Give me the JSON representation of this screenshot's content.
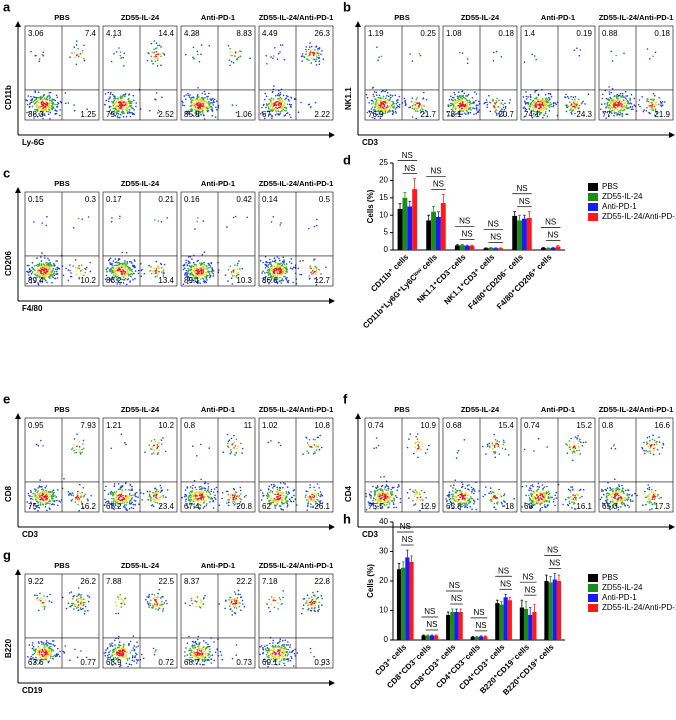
{
  "panels": [
    {
      "label": "a",
      "x_label": "Ly-6G",
      "y_label": "CD11b",
      "plots": [
        {
          "title": "PBS",
          "quadrants": [
            3.06,
            7.4,
            88.3,
            1.25
          ]
        },
        {
          "title": "ZD55-IL-24",
          "quadrants": [
            4.13,
            14.4,
            79,
            2.52
          ]
        },
        {
          "title": "Anti-PD-1",
          "quadrants": [
            4.28,
            8.83,
            85.8,
            1.06
          ]
        },
        {
          "title": "ZD55-IL-24/Anti-PD-1",
          "quadrants": [
            4.49,
            26.3,
            67,
            2.22
          ]
        }
      ]
    },
    {
      "label": "b",
      "x_label": "CD3",
      "y_label": "NK1.1",
      "plots": [
        {
          "title": "PBS",
          "quadrants": [
            1.19,
            0.25,
            76.9,
            21.7
          ]
        },
        {
          "title": "ZD55-IL-24",
          "quadrants": [
            1.08,
            0.18,
            78.1,
            20.7
          ]
        },
        {
          "title": "Anti-PD-1",
          "quadrants": [
            1.4,
            0.19,
            74.1,
            24.3
          ]
        },
        {
          "title": "ZD55-IL-24/Anti-PD-1",
          "quadrants": [
            0.88,
            0.18,
            77,
            21.9
          ]
        }
      ]
    },
    {
      "label": "c",
      "x_label": "F4/80",
      "y_label": "CD206",
      "plots": [
        {
          "title": "PBS",
          "quadrants": [
            0.15,
            0.3,
            89.4,
            10.2
          ]
        },
        {
          "title": "ZD55-IL-24",
          "quadrants": [
            0.17,
            0.21,
            86.2,
            13.4
          ]
        },
        {
          "title": "Anti-PD-1",
          "quadrants": [
            0.16,
            0.42,
            89.1,
            10.3
          ]
        },
        {
          "title": "ZD55-IL-24/Anti-PD-1",
          "quadrants": [
            0.14,
            0.5,
            86.6,
            12.7
          ]
        }
      ]
    },
    {
      "label": "e",
      "x_label": "CD3",
      "y_label": "CD8",
      "plots": [
        {
          "title": "PBS",
          "quadrants": [
            0.95,
            7.93,
            75,
            16.2
          ]
        },
        {
          "title": "ZD55-IL-24",
          "quadrants": [
            1.21,
            10.2,
            65.2,
            23.4
          ]
        },
        {
          "title": "Anti-PD-1",
          "quadrants": [
            0.8,
            11,
            67.4,
            20.8
          ]
        },
        {
          "title": "ZD55-IL-24/Anti-PD-1",
          "quadrants": [
            1.02,
            10.8,
            62,
            26.1
          ]
        }
      ]
    },
    {
      "label": "f",
      "x_label": "CD3",
      "y_label": "CD4",
      "plots": [
        {
          "title": "PBS",
          "quadrants": [
            0.74,
            10.9,
            75.5,
            12.9
          ]
        },
        {
          "title": "ZD55-IL-24",
          "quadrants": [
            0.68,
            15.4,
            65.8,
            18
          ]
        },
        {
          "title": "Anti-PD-1",
          "quadrants": [
            0.74,
            15.2,
            68,
            16.1
          ]
        },
        {
          "title": "ZD55-IL-24/Anti-PD-1",
          "quadrants": [
            0.8,
            16.6,
            65.3,
            17.3
          ]
        }
      ]
    },
    {
      "label": "g",
      "x_label": "CD19",
      "y_label": "B220",
      "plots": [
        {
          "title": "PBS",
          "quadrants": [
            9.22,
            26.2,
            63.6,
            0.77
          ]
        },
        {
          "title": "ZD55-IL-24",
          "quadrants": [
            7.88,
            22.5,
            68.9,
            0.72
          ]
        },
        {
          "title": "Anti-PD-1",
          "quadrants": [
            8.37,
            22.2,
            68.7,
            0.73
          ]
        },
        {
          "title": "ZD55-IL-24/Anti-PD-1",
          "quadrants": [
            7.18,
            22.8,
            69.1,
            0.93
          ]
        }
      ]
    }
  ],
  "chart_data": [
    {
      "label": "d",
      "type": "bar",
      "y_label": "Cells (%)",
      "categories": [
        "CD11b⁺ cells",
        "CD11b⁺Ly6G⁺Ly6Cˡᵒʷ cells",
        "NK1.1⁺CD3⁻cells",
        "NK1.1⁺CD3⁺ cells",
        "F4/80⁺CD206⁻ cells",
        "F4/80⁺CD206⁺ cells"
      ],
      "series": [
        {
          "name": "PBS",
          "color": "#000000",
          "values": [
            11.8,
            8.5,
            1.3,
            0.5,
            9.8,
            0.6
          ],
          "errors": [
            1.5,
            1.5,
            0.2,
            0.1,
            1.2,
            0.1
          ]
        },
        {
          "name": "ZD55-IL-24",
          "color": "#1a8c1a",
          "values": [
            15,
            11,
            1.4,
            0.6,
            8.5,
            0.5
          ],
          "errors": [
            1.5,
            1.5,
            0.2,
            0.1,
            1.5,
            0.1
          ]
        },
        {
          "name": "Anti-PD-1",
          "color": "#1a1aff",
          "values": [
            12.5,
            9.5,
            1.2,
            0.5,
            9,
            0.6
          ],
          "errors": [
            1.5,
            1.5,
            0.2,
            0.1,
            1,
            0.1
          ]
        },
        {
          "name": "ZD55-IL-24/Anti-PD-1",
          "color": "#ff1a1a",
          "values": [
            17.5,
            13.5,
            1.2,
            0.5,
            9.2,
            1
          ],
          "errors": [
            3,
            2.5,
            0.2,
            0.1,
            1.8,
            0.3
          ]
        }
      ],
      "annotations": [
        "NS",
        "NS",
        "NS",
        "NS",
        "NS",
        "NS",
        "NS",
        "NS",
        "NS",
        "NS",
        "NS",
        "NS"
      ],
      "ylim": [
        0,
        25
      ],
      "yticks": [
        0,
        5,
        10,
        15,
        20,
        25
      ]
    },
    {
      "label": "h",
      "type": "bar",
      "y_label": "Cells (%)",
      "categories": [
        "CD3⁺ cells",
        "CD8⁺CD3⁻cells",
        "CD8⁺CD3⁺ cells",
        "CD4⁺CD3⁻cells",
        "CD4⁺CD3⁺ cells",
        "B220⁺CD19⁻cells",
        "B220⁺CD19⁺ cells"
      ],
      "series": [
        {
          "name": "PBS",
          "color": "#000000",
          "values": [
            24,
            1.5,
            8.5,
            1,
            12.5,
            11,
            20
          ],
          "errors": [
            2,
            0.2,
            1,
            0.2,
            1,
            2.5,
            2
          ]
        },
        {
          "name": "ZD55-IL-24",
          "color": "#1a8c1a",
          "values": [
            24.5,
            1.5,
            9.5,
            1,
            12,
            10.5,
            19.5
          ],
          "errors": [
            2,
            0.2,
            1,
            0.2,
            1,
            2.5,
            2
          ]
        },
        {
          "name": "Anti-PD-1",
          "color": "#1a1aff",
          "values": [
            28,
            1.5,
            9.5,
            1.2,
            14.5,
            8.5,
            20.5
          ],
          "errors": [
            2.5,
            0.2,
            1,
            0.2,
            1,
            2.5,
            2
          ]
        },
        {
          "name": "ZD55-IL-24/Anti-PD-1",
          "color": "#ff1a1a",
          "values": [
            26.5,
            1.5,
            9.5,
            1.2,
            13.5,
            9.5,
            20
          ],
          "errors": [
            2,
            0.2,
            1,
            0.2,
            1,
            2.5,
            2
          ]
        }
      ],
      "annotations": [
        "NS",
        "NS",
        "NS",
        "NS",
        "NS",
        "NS",
        "NS",
        "NS",
        "NS",
        "NS",
        "NS",
        "NS",
        "NS",
        "NS"
      ],
      "ylim": [
        0,
        40
      ],
      "yticks": [
        0,
        10,
        20,
        30,
        40
      ]
    }
  ]
}
